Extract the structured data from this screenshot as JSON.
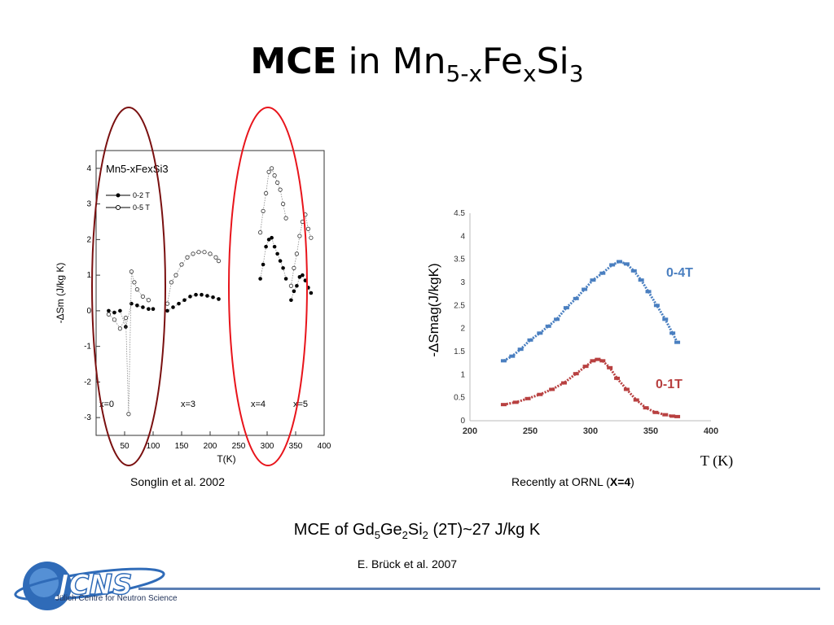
{
  "slide": {
    "title_bold": "MCE",
    "title_in": "in",
    "title_mn": "Mn",
    "title_sub1": "5-x",
    "title_fe": "Fe",
    "title_sub2": "x",
    "title_si": "Si",
    "title_sub3": "3",
    "caption_left": "Songlin et al. 2002",
    "caption_right_prefix": "Recently at ORNL (",
    "caption_right_bold": "X=4",
    "caption_right_suffix": ")",
    "mce_prefix": "MCE of Gd",
    "mce_sub1": "5",
    "mce_ge": "Ge",
    "mce_sub2": "2",
    "mce_si": "Si",
    "mce_sub3": "2",
    "mce_suffix": " (2T)~27 J/kg K",
    "citation": "E. Brück et al. 2007",
    "logo_text": "Jülich Centre for Neutron Science",
    "logo_letters": "JCNS"
  },
  "colors": {
    "dark_red_oval": "#7a1010",
    "red_oval": "#e8141b",
    "blue_series": "#4a7fc0",
    "red_series": "#b84040",
    "footer_rule": "#5b7fb4"
  },
  "chart_data": [
    {
      "type": "scatter",
      "title": "Mn5-xFexSi3",
      "xlabel": "T(K)",
      "ylabel": "-ΔSm (J/kg K)",
      "xlim": [
        0,
        400
      ],
      "ylim": [
        -3.5,
        4.5
      ],
      "xticks": [
        "50",
        "100",
        "150",
        "200",
        "250",
        "300",
        "350",
        "400"
      ],
      "yticks": [
        "-3",
        "-2",
        "-1",
        "0",
        "1",
        "2",
        "3",
        "4"
      ],
      "panel_labels": [
        "x=0",
        "x=3",
        "x=4",
        "x=5"
      ],
      "legend": [
        "0-2 T",
        "0-5 T"
      ],
      "legend_placement": "top-left",
      "series": [
        {
          "name": "0-2 T",
          "marker": "filled",
          "segments": [
            {
              "x": [
                22,
                32,
                42,
                52,
                62,
                72,
                82,
                92,
                100
              ],
              "y": [
                0.0,
                -0.05,
                0.0,
                -0.45,
                0.2,
                0.15,
                0.1,
                0.05,
                0.05
              ]
            },
            {
              "x": [
                125,
                135,
                145,
                155,
                165,
                175,
                185,
                195,
                205,
                215
              ],
              "y": [
                0.0,
                0.1,
                0.2,
                0.3,
                0.4,
                0.45,
                0.45,
                0.42,
                0.38,
                0.33
              ]
            },
            {
              "x": [
                288,
                293,
                298,
                303,
                308,
                313,
                318,
                323,
                328,
                333
              ],
              "y": [
                0.9,
                1.3,
                1.8,
                2.0,
                2.05,
                1.8,
                1.6,
                1.4,
                1.2,
                0.9
              ]
            },
            {
              "x": [
                342,
                347,
                352,
                357,
                362,
                367,
                372,
                377
              ],
              "y": [
                0.3,
                0.55,
                0.7,
                0.95,
                1.0,
                0.85,
                0.65,
                0.5
              ]
            }
          ]
        },
        {
          "name": "0-5 T",
          "marker": "open",
          "segments": [
            {
              "x": [
                22,
                32,
                42,
                52,
                57,
                62,
                67,
                72,
                82,
                92
              ],
              "y": [
                -0.1,
                -0.25,
                -0.5,
                -0.2,
                -2.9,
                1.1,
                0.8,
                0.6,
                0.4,
                0.3
              ]
            },
            {
              "x": [
                125,
                132,
                140,
                150,
                160,
                170,
                180,
                190,
                200,
                210,
                215
              ],
              "y": [
                0.2,
                0.8,
                1.0,
                1.3,
                1.5,
                1.6,
                1.65,
                1.65,
                1.6,
                1.5,
                1.4
              ]
            },
            {
              "x": [
                288,
                293,
                298,
                303,
                308,
                313,
                318,
                323,
                328,
                333
              ],
              "y": [
                2.2,
                2.8,
                3.3,
                3.9,
                4.0,
                3.8,
                3.6,
                3.4,
                3.0,
                2.6
              ]
            },
            {
              "x": [
                342,
                347,
                352,
                357,
                362,
                367,
                372,
                377
              ],
              "y": [
                0.7,
                1.2,
                1.6,
                2.1,
                2.5,
                2.7,
                2.3,
                2.05
              ]
            }
          ]
        }
      ]
    },
    {
      "type": "scatter",
      "xlabel": "T (K)",
      "ylabel": "-ΔSmag(J/kgK)",
      "xlim": [
        200,
        400
      ],
      "ylim": [
        0,
        4.5
      ],
      "xticks": [
        "200",
        "250",
        "300",
        "350",
        "400"
      ],
      "yticks": [
        "0",
        "0.5",
        "1",
        "1.5",
        "2",
        "2.5",
        "3",
        "3.5",
        "4",
        "4.5"
      ],
      "grid": false,
      "series": [
        {
          "name": "0-4T",
          "color": "#4a7fc0",
          "x": [
            228,
            235,
            242,
            250,
            258,
            265,
            272,
            280,
            288,
            295,
            302,
            310,
            318,
            324,
            330,
            336,
            342,
            348,
            355,
            362,
            368,
            372
          ],
          "y": [
            1.3,
            1.4,
            1.55,
            1.75,
            1.9,
            2.05,
            2.2,
            2.45,
            2.65,
            2.85,
            3.05,
            3.2,
            3.38,
            3.45,
            3.4,
            3.25,
            3.05,
            2.8,
            2.5,
            2.2,
            1.9,
            1.7
          ]
        },
        {
          "name": "0-1T",
          "color": "#b84040",
          "x": [
            228,
            238,
            248,
            258,
            268,
            278,
            288,
            296,
            302,
            306,
            310,
            316,
            322,
            330,
            338,
            346,
            354,
            362,
            368,
            372
          ],
          "y": [
            0.35,
            0.4,
            0.48,
            0.57,
            0.68,
            0.82,
            1.02,
            1.18,
            1.3,
            1.33,
            1.3,
            1.15,
            0.92,
            0.68,
            0.45,
            0.28,
            0.18,
            0.13,
            0.1,
            0.09
          ]
        }
      ]
    }
  ]
}
